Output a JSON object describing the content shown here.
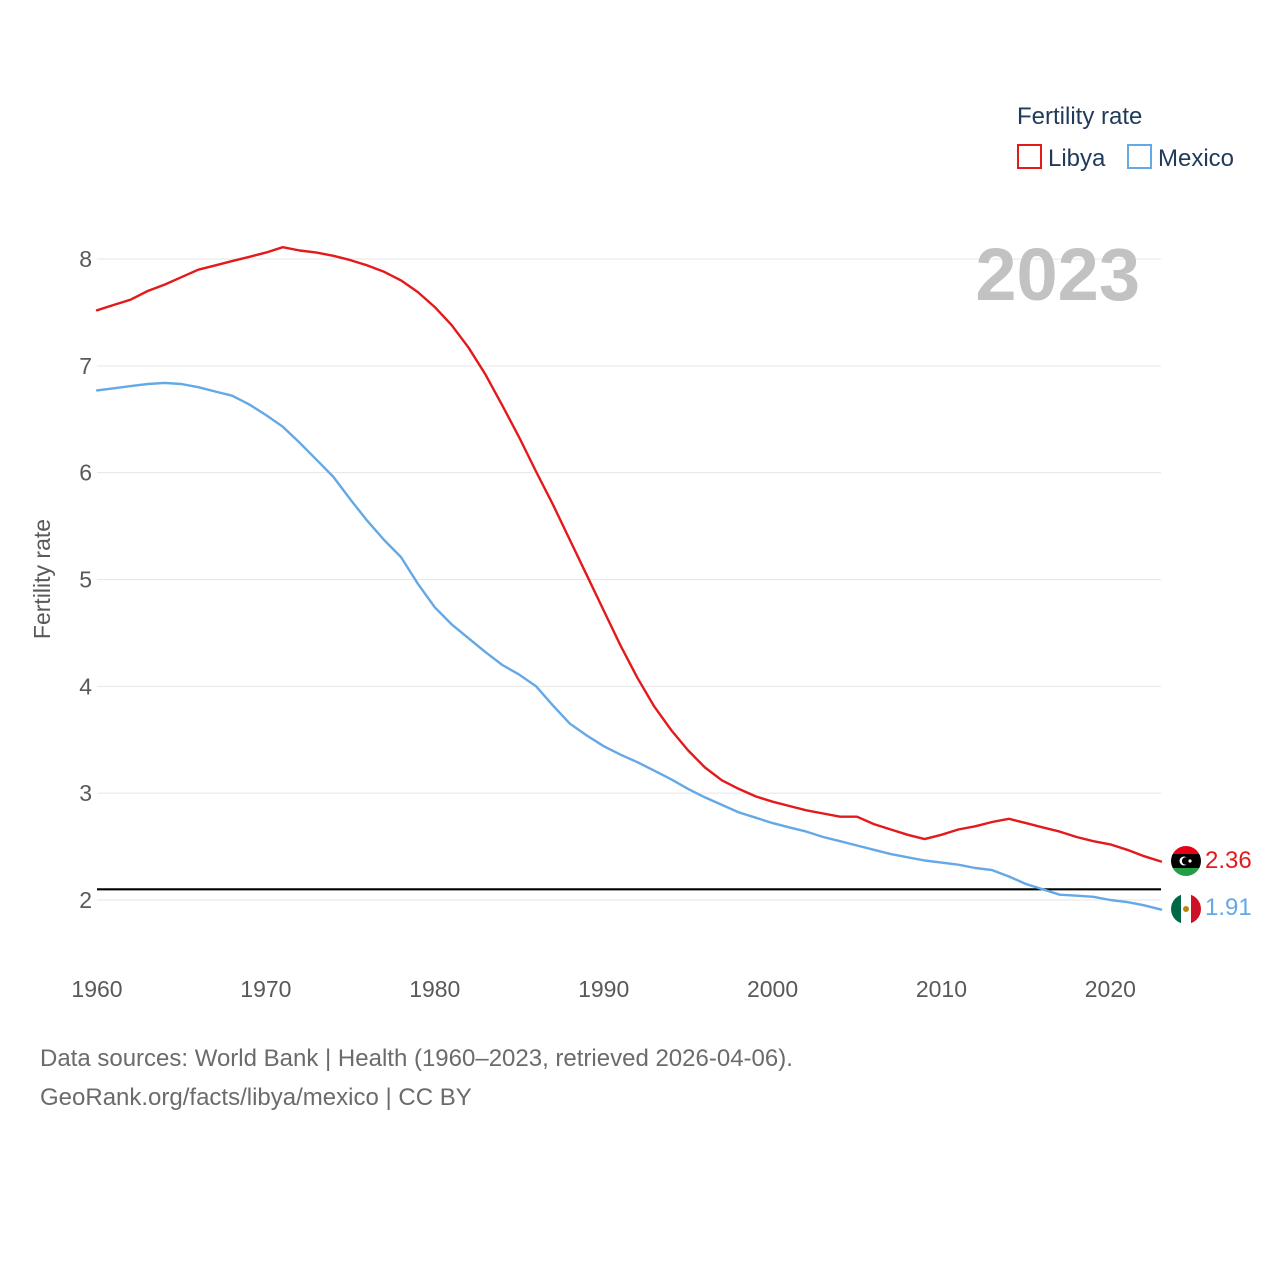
{
  "chart_data": {
    "type": "line",
    "ylabel": "Fertility rate",
    "xlabel": "",
    "legend_title": "Fertility rate",
    "legend_position": "top-right",
    "year_label": "2023",
    "xlim": [
      1960,
      2023
    ],
    "ylim": [
      1.55,
      8.5
    ],
    "xticks": [
      1960,
      1970,
      1980,
      1990,
      2000,
      2010,
      2020
    ],
    "yticks": [
      2,
      3,
      4,
      5,
      6,
      7,
      8
    ],
    "reference_line": 2.1,
    "grid": true,
    "x": [
      1960,
      1961,
      1962,
      1963,
      1964,
      1965,
      1966,
      1967,
      1968,
      1969,
      1970,
      1971,
      1972,
      1973,
      1974,
      1975,
      1976,
      1977,
      1978,
      1979,
      1980,
      1981,
      1982,
      1983,
      1984,
      1985,
      1986,
      1987,
      1988,
      1989,
      1990,
      1991,
      1992,
      1993,
      1994,
      1995,
      1996,
      1997,
      1998,
      1999,
      2000,
      2001,
      2002,
      2003,
      2004,
      2005,
      2006,
      2007,
      2008,
      2009,
      2010,
      2011,
      2012,
      2013,
      2014,
      2015,
      2016,
      2017,
      2018,
      2019,
      2020,
      2021,
      2022,
      2023
    ],
    "series": [
      {
        "name": "Libya",
        "color": "#e31a1c",
        "end_label": "2.36",
        "values": [
          7.52,
          7.57,
          7.62,
          7.7,
          7.76,
          7.83,
          7.9,
          7.94,
          7.98,
          8.02,
          8.06,
          8.11,
          8.08,
          8.06,
          8.03,
          7.99,
          7.94,
          7.88,
          7.8,
          7.69,
          7.55,
          7.38,
          7.17,
          6.92,
          6.63,
          6.33,
          6.01,
          5.7,
          5.37,
          5.04,
          4.71,
          4.38,
          4.08,
          3.81,
          3.59,
          3.4,
          3.24,
          3.12,
          3.04,
          2.97,
          2.92,
          2.88,
          2.84,
          2.81,
          2.78,
          2.78,
          2.71,
          2.66,
          2.61,
          2.57,
          2.61,
          2.66,
          2.69,
          2.73,
          2.76,
          2.72,
          2.68,
          2.64,
          2.59,
          2.55,
          2.52,
          2.47,
          2.41,
          2.36
        ]
      },
      {
        "name": "Mexico",
        "color": "#64a8e6",
        "end_label": "1.91",
        "values": [
          6.77,
          6.79,
          6.81,
          6.83,
          6.84,
          6.83,
          6.8,
          6.76,
          6.72,
          6.64,
          6.54,
          6.43,
          6.28,
          6.12,
          5.96,
          5.75,
          5.55,
          5.37,
          5.21,
          4.96,
          4.74,
          4.58,
          4.45,
          4.32,
          4.2,
          4.11,
          4.0,
          3.82,
          3.65,
          3.54,
          3.44,
          3.36,
          3.29,
          3.21,
          3.13,
          3.04,
          2.96,
          2.89,
          2.82,
          2.77,
          2.72,
          2.68,
          2.64,
          2.59,
          2.55,
          2.51,
          2.47,
          2.43,
          2.4,
          2.37,
          2.35,
          2.33,
          2.3,
          2.28,
          2.22,
          2.15,
          2.1,
          2.05,
          2.04,
          2.03,
          2.0,
          1.98,
          1.95,
          1.91
        ]
      }
    ]
  },
  "footer": {
    "line1": "Data sources: World Bank | Health (1960–2023, retrieved 2026-04-06).",
    "line2": "GeoRank.org/facts/libya/mexico | CC BY"
  }
}
